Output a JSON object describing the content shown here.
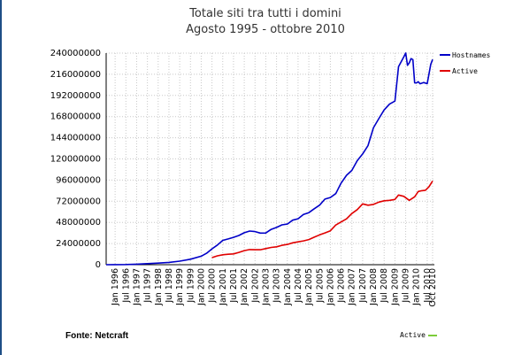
{
  "title_line1": "Totale siti tra tutti i domini",
  "title_line2": "Agosto 1995 - ottobre 2010",
  "source_label": "Fonte: Netcraft",
  "bottom_legend_label": "Active",
  "colors": {
    "hostnames": "#0000c8",
    "active": "#e00000",
    "bottom_legend": "#7ccc3a"
  },
  "chart_data": {
    "type": "line",
    "title": "Totale siti tra tutti i domini",
    "subtitle": "Agosto 1995 - ottobre 2010",
    "ylim": [
      0,
      240000000
    ],
    "yticks": [
      "0",
      "24000000",
      "48000000",
      "72000000",
      "96000000",
      "120000000",
      "144000000",
      "168000000",
      "192000000",
      "216000000",
      "240000000"
    ],
    "x_tick_labels": [
      "Jan 1996",
      "Jul 1996",
      "Jan 1997",
      "Jul 1997",
      "Jan 1998",
      "Jul 1998",
      "Jan 1999",
      "Jul 1999",
      "Jan 2000",
      "Jul 2000",
      "Jan 2001",
      "Jul 2001",
      "Jan 2002",
      "Jul 2002",
      "Jan 2003",
      "Jul 2003",
      "Jan 2004",
      "Jul 2004",
      "Jan 2005",
      "Jul 2005",
      "Jan 2006",
      "Jul 2006",
      "Jan 2007",
      "Jul 2007",
      "Jan 2008",
      "Jul 2008",
      "Jan 2009",
      "Jul 2009",
      "Jan 2010",
      "Jul 2010",
      "Oct 2010"
    ],
    "grid": true,
    "legend_placement": "top-right",
    "series": [
      {
        "name": "Hostnames",
        "x": [
          "1995-08",
          "1996-01",
          "1996-07",
          "1997-01",
          "1997-07",
          "1998-01",
          "1998-07",
          "1999-01",
          "1999-07",
          "2000-01",
          "2000-04",
          "2000-07",
          "2000-10",
          "2001-01",
          "2001-04",
          "2001-07",
          "2001-10",
          "2002-01",
          "2002-04",
          "2002-07",
          "2002-10",
          "2003-01",
          "2003-04",
          "2003-07",
          "2003-10",
          "2004-01",
          "2004-04",
          "2004-07",
          "2004-10",
          "2005-01",
          "2005-04",
          "2005-07",
          "2005-10",
          "2006-01",
          "2006-04",
          "2006-07",
          "2006-10",
          "2007-01",
          "2007-04",
          "2007-07",
          "2007-10",
          "2008-01",
          "2008-04",
          "2008-07",
          "2008-10",
          "2009-01",
          "2009-03",
          "2009-06",
          "2009-07",
          "2009-08",
          "2009-09",
          "2009-10",
          "2009-11",
          "2009-12",
          "2010-01",
          "2010-02",
          "2010-03",
          "2010-05",
          "2010-07",
          "2010-09",
          "2010-10"
        ],
        "values": [
          18957,
          100000,
          230000,
          650000,
          1200000,
          1800000,
          2600000,
          4000000,
          6200000,
          9600000,
          13000000,
          18000000,
          22300000,
          27600000,
          29200000,
          31000000,
          33100000,
          36300000,
          38200000,
          37600000,
          35800000,
          35900000,
          40100000,
          42300000,
          45200000,
          46100000,
          50500000,
          52100000,
          56900000,
          59000000,
          63500000,
          67600000,
          74400000,
          76200000,
          80600000,
          92600000,
          101400000,
          106900000,
          118000000,
          125600000,
          135200000,
          155200000,
          165700000,
          175500000,
          182200000,
          185600000,
          224700000,
          235900000,
          240100000,
          226100000,
          229000000,
          233800000,
          232700000,
          206300000,
          206200000,
          207600000,
          205300000,
          206700000,
          205400000,
          227200000,
          232800000
        ]
      },
      {
        "name": "Active",
        "x": [
          "2000-07",
          "2000-10",
          "2001-01",
          "2001-04",
          "2001-07",
          "2001-10",
          "2002-01",
          "2002-04",
          "2002-07",
          "2002-10",
          "2003-01",
          "2003-04",
          "2003-07",
          "2003-10",
          "2004-01",
          "2004-04",
          "2004-07",
          "2004-10",
          "2005-01",
          "2005-04",
          "2005-07",
          "2005-10",
          "2006-01",
          "2006-04",
          "2006-07",
          "2006-10",
          "2007-01",
          "2007-04",
          "2007-07",
          "2007-10",
          "2008-01",
          "2008-04",
          "2008-07",
          "2008-10",
          "2009-01",
          "2009-03",
          "2009-06",
          "2009-09",
          "2009-12",
          "2010-02",
          "2010-04",
          "2010-06",
          "2010-08",
          "2010-10"
        ],
        "values": [
          8000000,
          10000000,
          11200000,
          11800000,
          12300000,
          14000000,
          16000000,
          17200000,
          17000000,
          17000000,
          18300000,
          19600000,
          20300000,
          22000000,
          23000000,
          24800000,
          25900000,
          27000000,
          28500000,
          31200000,
          33800000,
          36000000,
          38500000,
          45000000,
          48500000,
          52000000,
          58000000,
          62500000,
          69000000,
          67500000,
          68400000,
          71000000,
          72500000,
          73000000,
          74000000,
          79000000,
          77500000,
          73000000,
          77000000,
          83000000,
          84000000,
          84500000,
          88500000,
          95000000
        ]
      }
    ]
  }
}
